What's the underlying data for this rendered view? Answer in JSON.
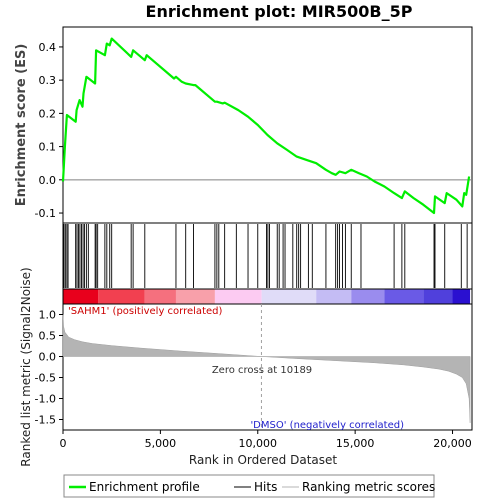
{
  "chart_data": {
    "type": "line",
    "title": "Enrichment plot: MIR500B_5P",
    "x_axis": {
      "label": "Rank in Ordered Dataset",
      "range": [
        0,
        21000
      ],
      "ticks": [
        0,
        5000,
        10000,
        15000,
        20000
      ],
      "tick_labels": [
        "0",
        "5,000",
        "10,000",
        "15,000",
        "20,000"
      ]
    },
    "es_panel": {
      "ylabel": "Enrichment score (ES)",
      "ylim": [
        -0.13,
        0.46
      ],
      "ticks": [
        -0.1,
        0.0,
        0.1,
        0.2,
        0.3,
        0.4
      ],
      "tick_labels": [
        "-0.1",
        "0.0",
        "0.1",
        "0.2",
        "0.3",
        "0.4"
      ],
      "line_color": "#00ee00",
      "series": {
        "name": "Enrichment profile",
        "x": [
          0,
          100,
          200,
          650,
          700,
          850,
          1000,
          1050,
          1200,
          1650,
          1700,
          2150,
          2250,
          2400,
          2500,
          3500,
          3600,
          4200,
          4300,
          5700,
          5800,
          6100,
          6300,
          6700,
          6800,
          7800,
          7900,
          8200,
          8300,
          9000,
          9500,
          10000,
          10500,
          11000,
          11500,
          12000,
          12500,
          13000,
          13500,
          13800,
          14000,
          14200,
          14500,
          14800,
          15200,
          15600,
          16000,
          16500,
          17000,
          17400,
          17550,
          18000,
          18500,
          19050,
          19100,
          19600,
          19700,
          20200,
          20500,
          20600,
          20700,
          20850
        ],
        "y": [
          -0.005,
          0.1,
          0.195,
          0.175,
          0.21,
          0.24,
          0.22,
          0.26,
          0.31,
          0.29,
          0.39,
          0.375,
          0.41,
          0.405,
          0.425,
          0.37,
          0.39,
          0.36,
          0.375,
          0.305,
          0.31,
          0.295,
          0.29,
          0.285,
          0.285,
          0.235,
          0.235,
          0.23,
          0.232,
          0.21,
          0.19,
          0.165,
          0.135,
          0.11,
          0.09,
          0.07,
          0.06,
          0.05,
          0.03,
          0.02,
          0.015,
          0.025,
          0.02,
          0.03,
          0.02,
          0.01,
          -0.005,
          -0.02,
          -0.04,
          -0.055,
          -0.035,
          -0.055,
          -0.075,
          -0.1,
          -0.05,
          -0.07,
          -0.04,
          -0.06,
          -0.08,
          -0.04,
          -0.045,
          0.01
        ]
      }
    },
    "hits": {
      "name": "Hits",
      "positions": [
        50,
        120,
        200,
        260,
        650,
        720,
        800,
        870,
        950,
        1030,
        1100,
        1200,
        1300,
        1650,
        1700,
        1780,
        2150,
        2250,
        2400,
        2500,
        3500,
        3600,
        4200,
        5800,
        6300,
        6700,
        7800,
        7900,
        8000,
        8300,
        8900,
        9500,
        10000,
        10450,
        10520,
        10600,
        11000,
        11100,
        11300,
        11400,
        11800,
        12000,
        12100,
        12200,
        12600,
        12800,
        13500,
        14000,
        14100,
        14200,
        14350,
        14500,
        14800,
        15300,
        17000,
        17400,
        17550,
        19050,
        19100,
        19600,
        20450,
        20750
      ]
    },
    "rank_bar": {
      "label_positive": "'SAHM1' (positively correlated)",
      "label_negative": "'DMSO' (negatively correlated)",
      "segments": [
        {
          "from": 0,
          "to": 1800,
          "color": "#e8001c"
        },
        {
          "from": 1800,
          "to": 4200,
          "color": "#f24050"
        },
        {
          "from": 4200,
          "to": 5800,
          "color": "#f5707e"
        },
        {
          "from": 5800,
          "to": 7800,
          "color": "#f8a0aa"
        },
        {
          "from": 7800,
          "to": 10200,
          "color": "#fccbf2"
        },
        {
          "from": 10200,
          "to": 13000,
          "color": "#e0dcf8"
        },
        {
          "from": 13000,
          "to": 14800,
          "color": "#c4bcf4"
        },
        {
          "from": 14800,
          "to": 16500,
          "color": "#9a8cee"
        },
        {
          "from": 16500,
          "to": 18500,
          "color": "#6a5ae6"
        },
        {
          "from": 18500,
          "to": 20000,
          "color": "#5040dc"
        },
        {
          "from": 20000,
          "to": 20900,
          "color": "#2a10d0"
        }
      ]
    },
    "metric_panel": {
      "ylabel": "Ranked list metric (Signal2Noise)",
      "ylim": [
        -1.75,
        1.25
      ],
      "ticks": [
        -1.5,
        -1.0,
        -0.5,
        0.0,
        0.5,
        1.0
      ],
      "tick_labels": [
        "-1.5",
        "-1.0",
        "-0.5",
        "0.0",
        "0.5",
        "1.0"
      ],
      "zero_cross_label": "Zero cross at 10189",
      "zero_cross": 10189,
      "series": {
        "name": "Ranking metric scores",
        "x": [
          0,
          30,
          100,
          300,
          600,
          1000,
          1500,
          2500,
          4000,
          6000,
          8000,
          10189,
          12000,
          14000,
          16000,
          17500,
          18500,
          19300,
          19800,
          20200,
          20500,
          20700,
          20850,
          20900
        ],
        "y": [
          1.0,
          0.72,
          0.58,
          0.46,
          0.4,
          0.35,
          0.31,
          0.26,
          0.2,
          0.13,
          0.07,
          0.0,
          -0.05,
          -0.1,
          -0.15,
          -0.2,
          -0.25,
          -0.3,
          -0.35,
          -0.42,
          -0.5,
          -0.65,
          -1.0,
          -1.58
        ]
      },
      "fill_color": "#b4b4b4"
    },
    "legend": {
      "items": [
        {
          "label": "Enrichment profile",
          "color": "#00ee00"
        },
        {
          "label": "Hits",
          "color": "#000000"
        },
        {
          "label": "Ranking metric scores",
          "color": "#b4b4b4"
        }
      ]
    }
  }
}
